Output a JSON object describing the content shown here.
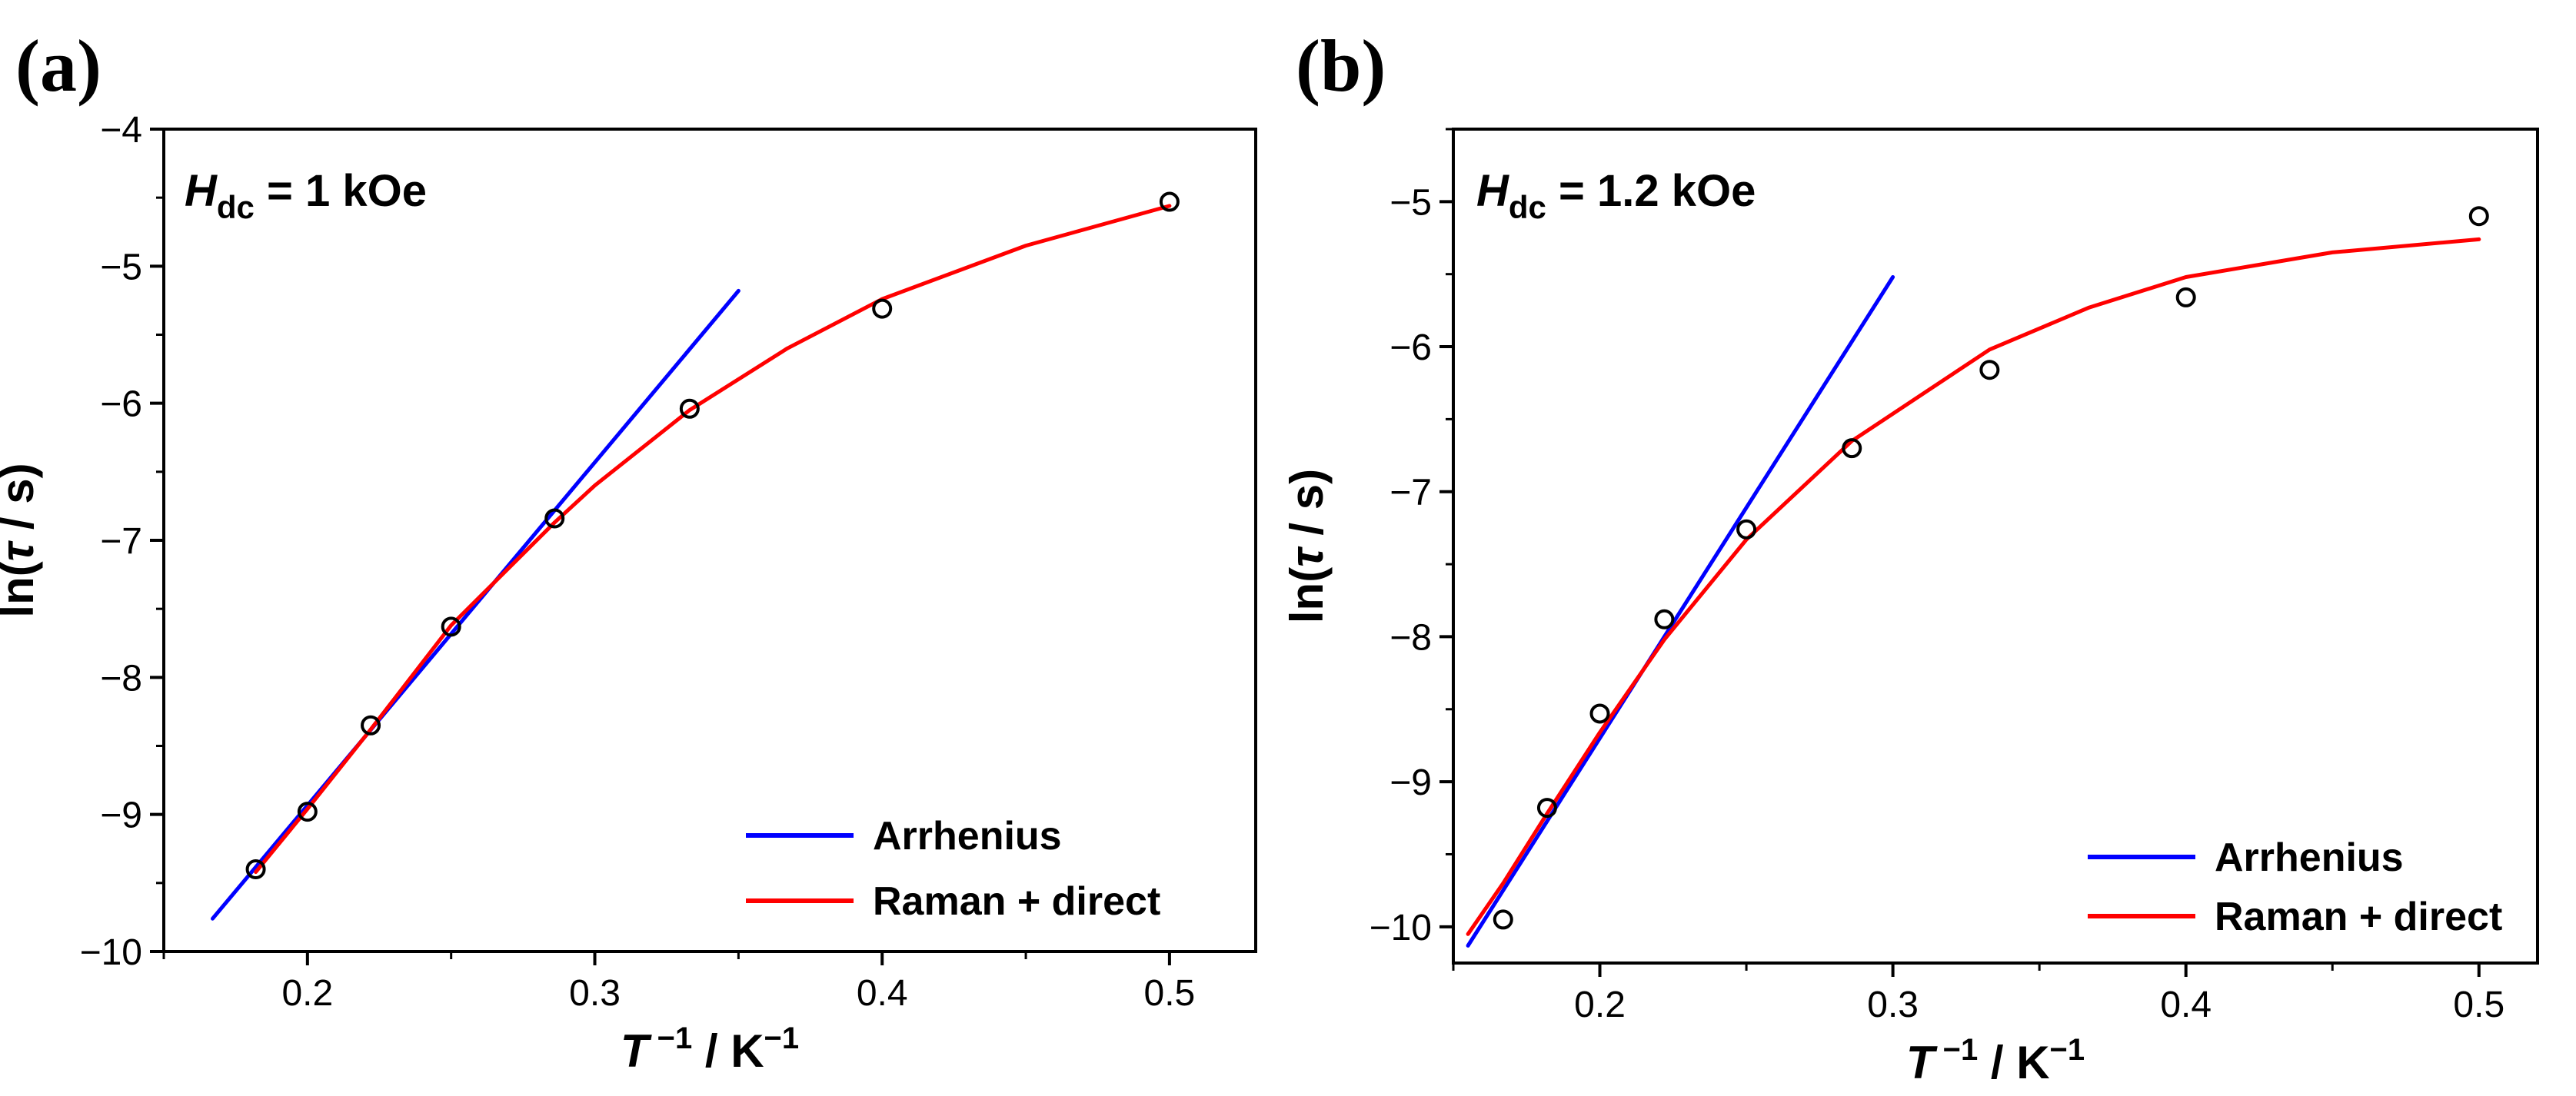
{
  "chart_data": [
    {
      "type": "scatter",
      "panel_label": "(a)",
      "annotation": {
        "symbol": "H",
        "subscript": "dc",
        "rest": " = 1 kOe"
      },
      "xlabel": {
        "symbol": "T",
        "sup1": " −1",
        "mid": " / K",
        "sup2": "−1"
      },
      "ylabel": {
        "pre": "ln(",
        "symbol": "τ",
        "post": " / s)"
      },
      "xlim": [
        0.15,
        0.53
      ],
      "ylim": [
        -10,
        -4
      ],
      "xticks": [
        0.2,
        0.3,
        0.4,
        0.5
      ],
      "xtick_labels": [
        "0.2",
        "0.3",
        "0.4",
        "0.5"
      ],
      "yticks": [
        -10,
        -9,
        -8,
        -7,
        -6,
        -5,
        -4
      ],
      "ytick_labels": [
        "−10",
        "−9",
        "−8",
        "−7",
        "−6",
        "−5",
        "−4"
      ],
      "points": {
        "x": [
          0.182,
          0.2,
          0.222,
          0.25,
          0.286,
          0.333,
          0.4,
          0.5
        ],
        "y": [
          -9.4,
          -8.98,
          -8.35,
          -7.63,
          -6.84,
          -6.04,
          -5.31,
          -4.53
        ]
      },
      "series": [
        {
          "name": "Arrhenius",
          "color": "#0000ff",
          "x": [
            0.167,
            0.35
          ],
          "y": [
            -9.76,
            -5.18
          ]
        },
        {
          "name": "Raman + direct",
          "color": "#ff0000",
          "x": [
            0.182,
            0.2,
            0.222,
            0.25,
            0.286,
            0.3,
            0.333,
            0.367,
            0.4,
            0.45,
            0.5
          ],
          "y": [
            -9.42,
            -8.96,
            -8.38,
            -7.62,
            -6.87,
            -6.6,
            -6.05,
            -5.6,
            -5.24,
            -4.85,
            -4.56
          ]
        }
      ],
      "legend": [
        "Arrhenius",
        "Raman + direct"
      ]
    },
    {
      "type": "scatter",
      "panel_label": "(b)",
      "annotation": {
        "symbol": "H",
        "subscript": "dc",
        "rest": " = 1.2 kOe"
      },
      "xlabel": {
        "symbol": "T",
        "sup1": " −1",
        "mid": " / K",
        "sup2": "−1"
      },
      "ylabel": {
        "pre": "ln(",
        "symbol": "τ",
        "post": " / s)"
      },
      "xlim": [
        0.15,
        0.52
      ],
      "ylim": [
        -10.25,
        -4.5
      ],
      "xticks": [
        0.2,
        0.3,
        0.4,
        0.5
      ],
      "xtick_labels": [
        "0.2",
        "0.3",
        "0.4",
        "0.5"
      ],
      "yticks": [
        -10,
        -9,
        -8,
        -7,
        -6,
        -5
      ],
      "ytick_labels": [
        "−10",
        "−9",
        "−8",
        "−7",
        "−6",
        "−5"
      ],
      "points": {
        "x": [
          0.167,
          0.182,
          0.2,
          0.222,
          0.25,
          0.286,
          0.333,
          0.4,
          0.5
        ],
        "y": [
          -9.95,
          -9.18,
          -8.53,
          -7.88,
          -7.26,
          -6.7,
          -6.16,
          -5.66,
          -5.1
        ]
      },
      "series": [
        {
          "name": "Arrhenius",
          "color": "#0000ff",
          "x": [
            0.155,
            0.3
          ],
          "y": [
            -10.13,
            -5.52
          ]
        },
        {
          "name": "Raman + direct",
          "color": "#ff0000",
          "x": [
            0.155,
            0.167,
            0.182,
            0.2,
            0.222,
            0.25,
            0.286,
            0.333,
            0.367,
            0.4,
            0.45,
            0.5
          ],
          "y": [
            -10.05,
            -9.7,
            -9.22,
            -8.66,
            -8.02,
            -7.33,
            -6.65,
            -6.02,
            -5.73,
            -5.52,
            -5.35,
            -5.26
          ]
        }
      ],
      "legend": [
        "Arrhenius",
        "Raman + direct"
      ]
    }
  ]
}
